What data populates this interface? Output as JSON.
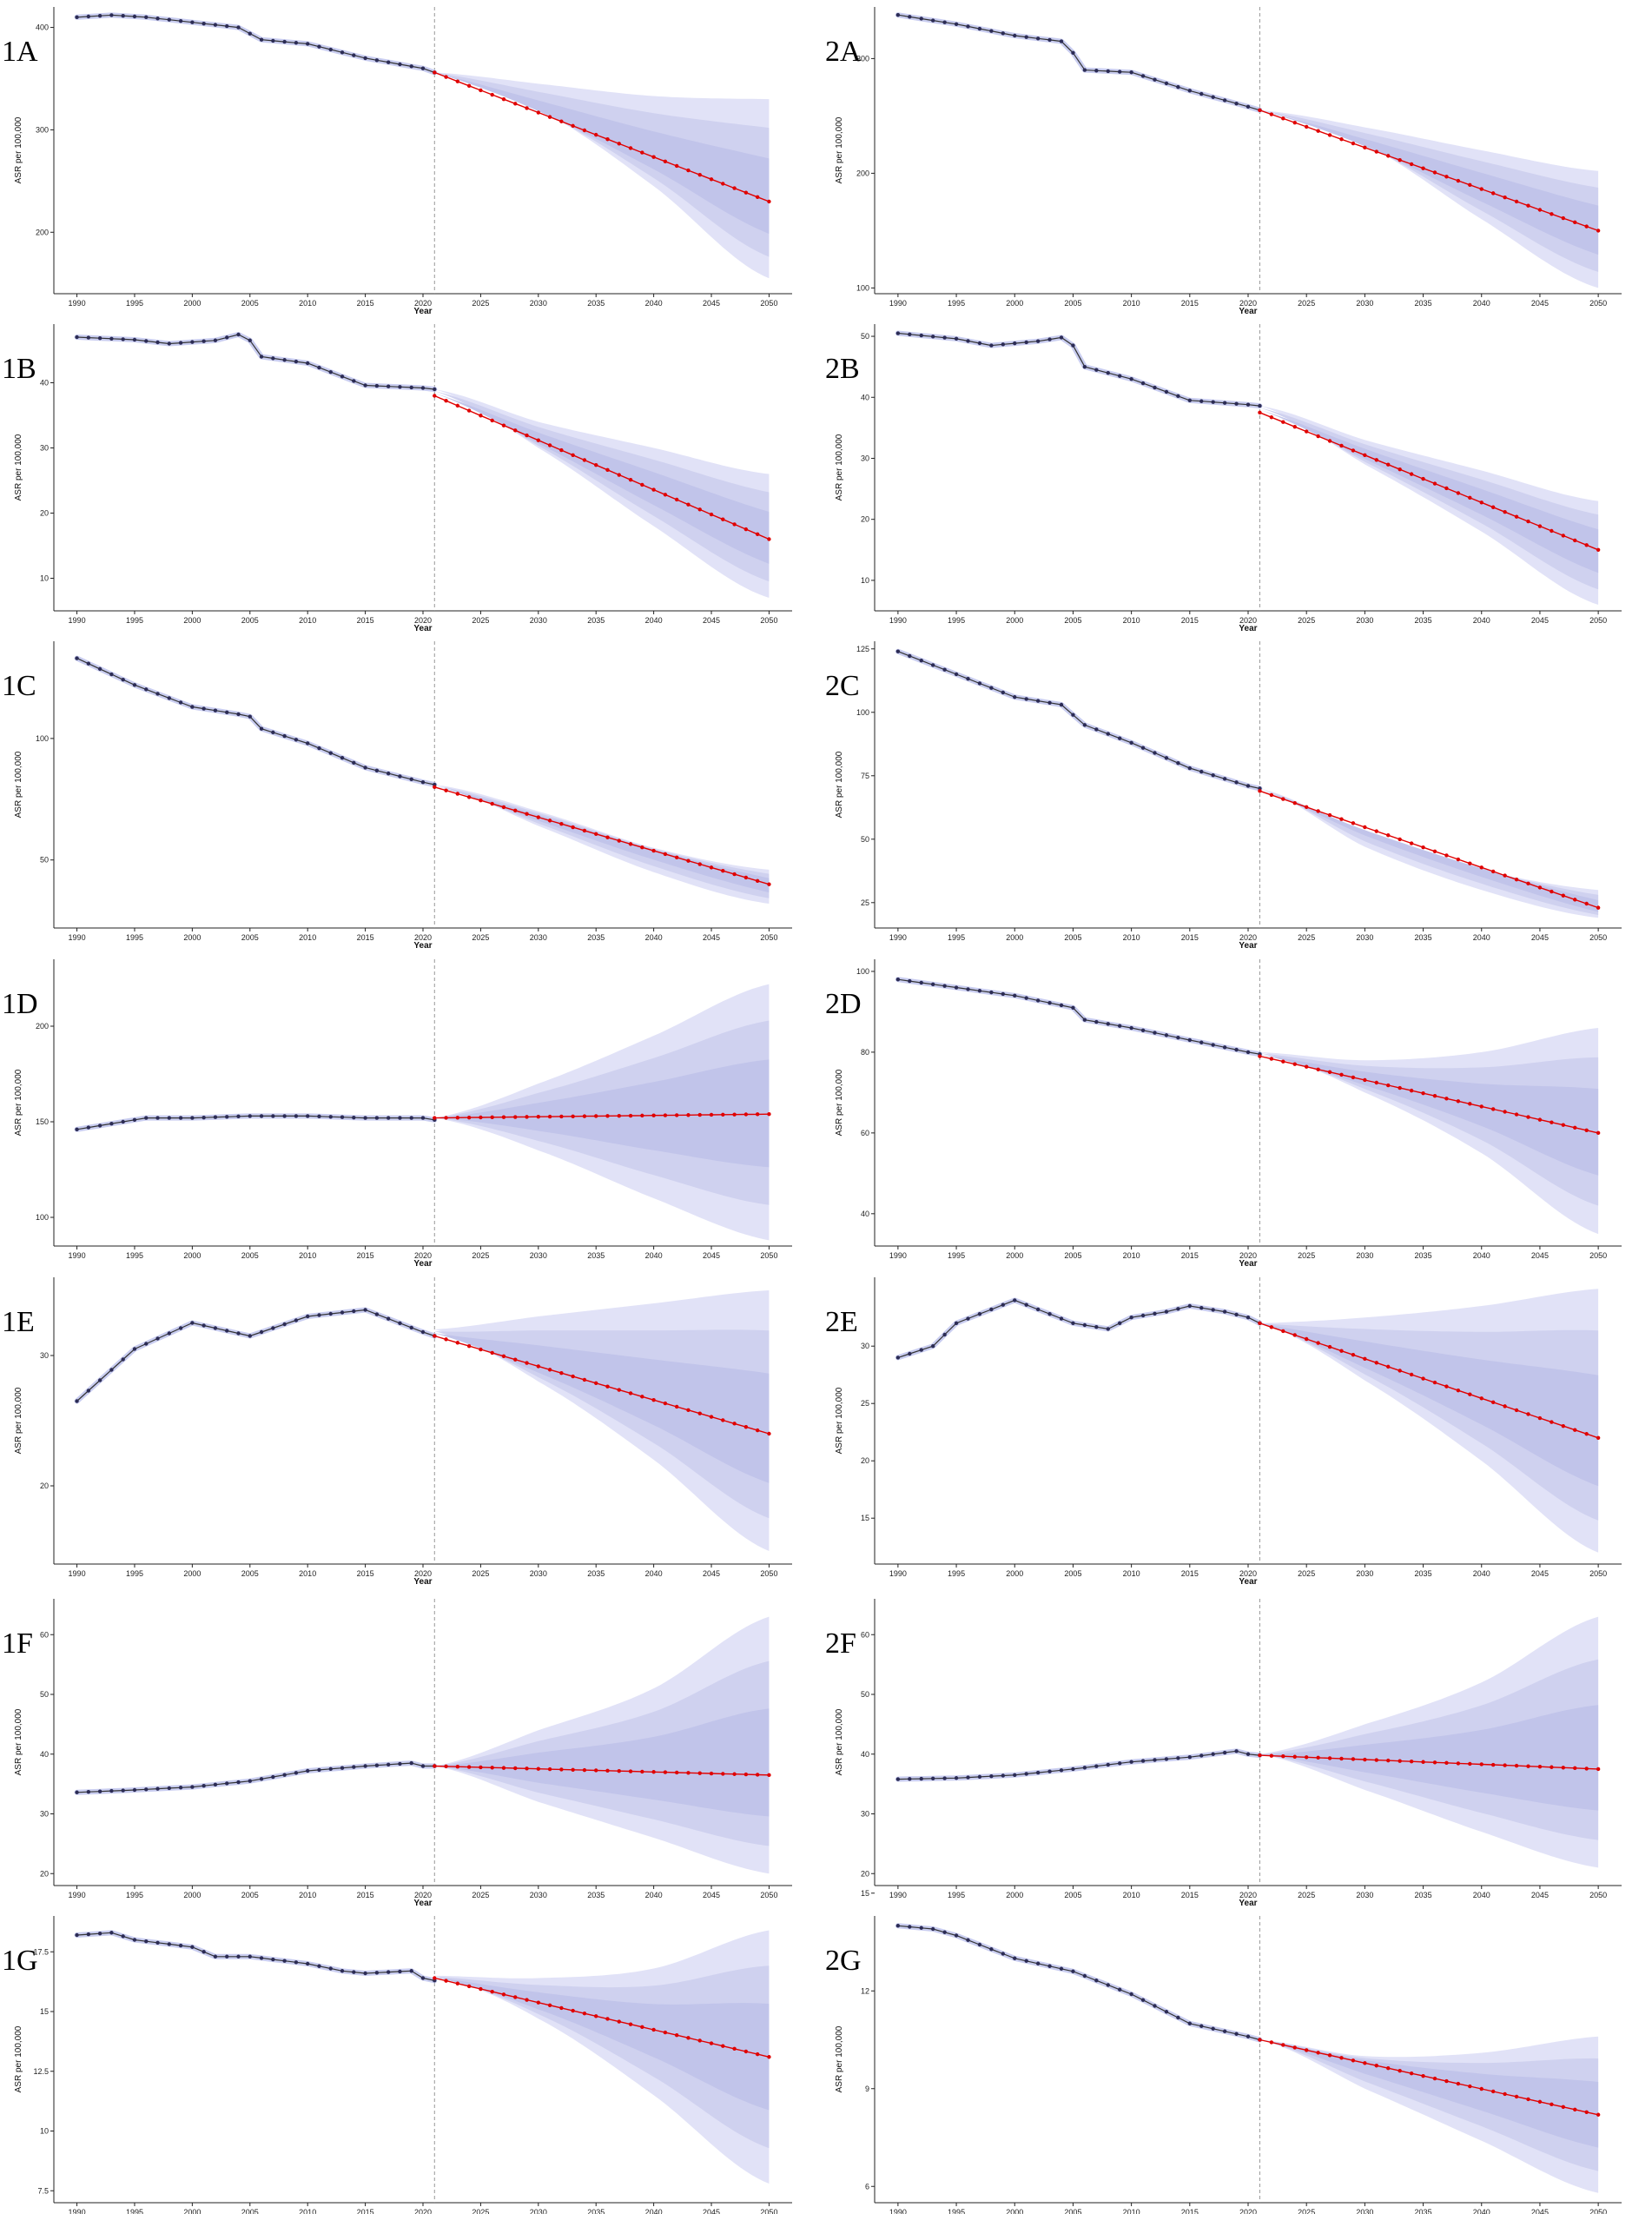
{
  "figure": {
    "colors": {
      "observed_line": "#333333",
      "observed_point": "#2c2c55",
      "observed_band": "#c9cdf0",
      "projection_line": "#e00000",
      "projection_point": "#e00000",
      "ci_band_outer": "#e1e2f7",
      "ci_band_inner": "#cfd1ef",
      "ci_band_core": "#c1c4ea",
      "divider_line": "#999999",
      "axis": "#222222"
    },
    "x_label": "Year",
    "y_label": "ASR per 100,000",
    "x_ticks": [
      1990,
      1995,
      2000,
      2005,
      2010,
      2015,
      2020,
      2025,
      2030,
      2035,
      2040,
      2045,
      2050
    ],
    "divider_year": 2021
  },
  "chart_data": [
    {
      "id": "1A",
      "label": "1A",
      "type": "line",
      "ylim": [
        140,
        420
      ],
      "yticks": [
        200,
        300,
        400
      ],
      "observed": {
        "x": [
          1990,
          1993,
          1996,
          2000,
          2004,
          2006,
          2010,
          2015,
          2020,
          2021
        ],
        "y": [
          410,
          412,
          410,
          405,
          400,
          388,
          384,
          370,
          360,
          356
        ]
      },
      "projection": {
        "x": [
          2021,
          2050
        ],
        "y": [
          356,
          230
        ]
      },
      "ci_upper": [
        [
          2021,
          356
        ],
        [
          2030,
          345
        ],
        [
          2040,
          333
        ],
        [
          2050,
          330
        ]
      ],
      "ci_lower": [
        [
          2021,
          356
        ],
        [
          2030,
          320
        ],
        [
          2040,
          245
        ],
        [
          2050,
          155
        ]
      ]
    },
    {
      "id": "2A",
      "label": "2A",
      "type": "line",
      "ylim": [
        95,
        345
      ],
      "yticks": [
        100,
        200,
        300
      ],
      "observed": {
        "x": [
          1990,
          1995,
          2000,
          2004,
          2005,
          2006,
          2010,
          2015,
          2020,
          2021
        ],
        "y": [
          338,
          330,
          320,
          315,
          305,
          290,
          288,
          272,
          258,
          255
        ]
      },
      "projection": {
        "x": [
          2021,
          2050
        ],
        "y": [
          255,
          150
        ]
      },
      "ci_upper": [
        [
          2021,
          255
        ],
        [
          2030,
          240
        ],
        [
          2040,
          220
        ],
        [
          2050,
          202
        ]
      ],
      "ci_lower": [
        [
          2021,
          255
        ],
        [
          2030,
          225
        ],
        [
          2040,
          160
        ],
        [
          2050,
          100
        ]
      ]
    },
    {
      "id": "1B",
      "label": "1B",
      "type": "line",
      "ylim": [
        5,
        49
      ],
      "yticks": [
        10,
        20,
        30,
        40
      ],
      "observed": {
        "x": [
          1990,
          1995,
          1998,
          2002,
          2004,
          2005,
          2006,
          2010,
          2015,
          2020,
          2021
        ],
        "y": [
          47,
          46.6,
          46,
          46.5,
          47.4,
          46.5,
          44,
          43,
          39.6,
          39.2,
          39
        ]
      },
      "projection": {
        "x": [
          2021,
          2050
        ],
        "y": [
          38,
          16
        ]
      },
      "ci_upper": [
        [
          2021,
          39
        ],
        [
          2030,
          34
        ],
        [
          2040,
          30
        ],
        [
          2050,
          26
        ]
      ],
      "ci_lower": [
        [
          2021,
          39
        ],
        [
          2030,
          30
        ],
        [
          2040,
          18
        ],
        [
          2050,
          7
        ]
      ]
    },
    {
      "id": "2B",
      "label": "2B",
      "type": "line",
      "ylim": [
        5,
        52
      ],
      "yticks": [
        10,
        20,
        30,
        40,
        50
      ],
      "observed": {
        "x": [
          1990,
          1995,
          1998,
          2002,
          2004,
          2005,
          2006,
          2010,
          2015,
          2020,
          2021
        ],
        "y": [
          50.5,
          49.6,
          48.5,
          49.2,
          49.8,
          48.5,
          45,
          43,
          39.5,
          38.8,
          38.6
        ]
      },
      "projection": {
        "x": [
          2021,
          2050
        ],
        "y": [
          37.5,
          15
        ]
      },
      "ci_upper": [
        [
          2021,
          38.6
        ],
        [
          2030,
          33
        ],
        [
          2040,
          28
        ],
        [
          2050,
          23
        ]
      ],
      "ci_lower": [
        [
          2021,
          38.6
        ],
        [
          2030,
          29
        ],
        [
          2040,
          18
        ],
        [
          2050,
          6
        ]
      ]
    },
    {
      "id": "1C",
      "label": "1C",
      "type": "line",
      "ylim": [
        22,
        140
      ],
      "yticks": [
        50,
        100
      ],
      "observed": {
        "x": [
          1990,
          1995,
          2000,
          2004,
          2005,
          2006,
          2010,
          2015,
          2020,
          2021
        ],
        "y": [
          133,
          122,
          113,
          110,
          109,
          104,
          98,
          88,
          82,
          81
        ]
      },
      "projection": {
        "x": [
          2021,
          2050
        ],
        "y": [
          80,
          40
        ]
      },
      "ci_upper": [
        [
          2021,
          81
        ],
        [
          2030,
          70
        ],
        [
          2040,
          55
        ],
        [
          2050,
          46
        ]
      ],
      "ci_lower": [
        [
          2021,
          81
        ],
        [
          2030,
          64
        ],
        [
          2040,
          45
        ],
        [
          2050,
          32
        ]
      ]
    },
    {
      "id": "2C",
      "label": "2C",
      "type": "line",
      "ylim": [
        15,
        128
      ],
      "yticks": [
        25,
        50,
        75,
        100,
        125
      ],
      "observed": {
        "x": [
          1990,
          1995,
          2000,
          2004,
          2005,
          2006,
          2010,
          2015,
          2020,
          2021
        ],
        "y": [
          124,
          115,
          106,
          103,
          99,
          95,
          88,
          78,
          71,
          70
        ]
      },
      "projection": {
        "x": [
          2021,
          2050
        ],
        "y": [
          69,
          23
        ]
      },
      "ci_upper": [
        [
          2021,
          70
        ],
        [
          2030,
          52
        ],
        [
          2040,
          38
        ],
        [
          2050,
          30
        ]
      ],
      "ci_lower": [
        [
          2021,
          70
        ],
        [
          2030,
          47
        ],
        [
          2040,
          30
        ],
        [
          2050,
          19
        ]
      ]
    },
    {
      "id": "1D",
      "label": "1D",
      "type": "line",
      "ylim": [
        85,
        235
      ],
      "yticks": [
        100,
        150,
        200
      ],
      "observed": {
        "x": [
          1990,
          1993,
          1996,
          2000,
          2005,
          2010,
          2015,
          2020,
          2021
        ],
        "y": [
          146,
          149,
          152,
          152,
          153,
          153,
          152,
          152,
          151
        ]
      },
      "projection": {
        "x": [
          2021,
          2050
        ],
        "y": [
          152,
          154
        ]
      },
      "ci_upper": [
        [
          2021,
          152
        ],
        [
          2030,
          170
        ],
        [
          2040,
          195
        ],
        [
          2050,
          222
        ]
      ],
      "ci_lower": [
        [
          2021,
          152
        ],
        [
          2030,
          135
        ],
        [
          2040,
          110
        ],
        [
          2050,
          88
        ]
      ]
    },
    {
      "id": "2D",
      "label": "2D",
      "type": "line",
      "ylim": [
        32,
        103
      ],
      "yticks": [
        40,
        60,
        80,
        100
      ],
      "observed": {
        "x": [
          1990,
          1995,
          2000,
          2005,
          2006,
          2010,
          2015,
          2020,
          2021
        ],
        "y": [
          98,
          96,
          94,
          91,
          88,
          86,
          83,
          80,
          79.5
        ]
      },
      "projection": {
        "x": [
          2021,
          2050
        ],
        "y": [
          79,
          60
        ]
      },
      "ci_upper": [
        [
          2021,
          80
        ],
        [
          2030,
          78
        ],
        [
          2040,
          80
        ],
        [
          2050,
          86
        ]
      ],
      "ci_lower": [
        [
          2021,
          80
        ],
        [
          2030,
          70
        ],
        [
          2040,
          55
        ],
        [
          2050,
          35
        ]
      ]
    },
    {
      "id": "1E",
      "label": "1E",
      "type": "line",
      "ylim": [
        14,
        36
      ],
      "yticks": [
        20,
        30
      ],
      "observed": {
        "x": [
          1990,
          1995,
          2000,
          2005,
          2010,
          2015,
          2020,
          2021
        ],
        "y": [
          26.5,
          30.5,
          32.5,
          31.5,
          33,
          33.5,
          31.8,
          31.5
        ]
      },
      "projection": {
        "x": [
          2021,
          2050
        ],
        "y": [
          31.5,
          24
        ]
      },
      "ci_upper": [
        [
          2021,
          32
        ],
        [
          2030,
          33
        ],
        [
          2040,
          34
        ],
        [
          2050,
          35
        ]
      ],
      "ci_lower": [
        [
          2021,
          32
        ],
        [
          2030,
          28
        ],
        [
          2040,
          22
        ],
        [
          2050,
          15
        ]
      ]
    },
    {
      "id": "2E",
      "label": "2E",
      "type": "line",
      "ylim": [
        11,
        36
      ],
      "yticks": [
        15,
        20,
        25,
        30
      ],
      "observed": {
        "x": [
          1990,
          1993,
          1995,
          2000,
          2005,
          2008,
          2010,
          2013,
          2015,
          2018,
          2020,
          2021
        ],
        "y": [
          29,
          30,
          32,
          34,
          32,
          31.5,
          32.5,
          33,
          33.5,
          33,
          32.5,
          32
        ]
      },
      "projection": {
        "x": [
          2021,
          2050
        ],
        "y": [
          32,
          22
        ]
      },
      "ci_upper": [
        [
          2021,
          32
        ],
        [
          2030,
          32.5
        ],
        [
          2040,
          33.5
        ],
        [
          2050,
          35
        ]
      ],
      "ci_lower": [
        [
          2021,
          32
        ],
        [
          2030,
          27
        ],
        [
          2040,
          20
        ],
        [
          2050,
          12
        ]
      ]
    },
    {
      "id": "1F",
      "label": "1F",
      "type": "line",
      "ylim": [
        18,
        66
      ],
      "yticks": [
        20,
        30,
        40,
        50,
        60
      ],
      "observed": {
        "x": [
          1990,
          1995,
          2000,
          2005,
          2010,
          2015,
          2019,
          2020,
          2021
        ],
        "y": [
          33.6,
          34,
          34.5,
          35.5,
          37.2,
          38,
          38.5,
          38,
          38
        ]
      },
      "projection": {
        "x": [
          2021,
          2050
        ],
        "y": [
          38,
          36.5
        ]
      },
      "ci_upper": [
        [
          2021,
          38
        ],
        [
          2030,
          44
        ],
        [
          2040,
          51
        ],
        [
          2050,
          63
        ]
      ],
      "ci_lower": [
        [
          2021,
          38
        ],
        [
          2030,
          32
        ],
        [
          2040,
          26
        ],
        [
          2050,
          20
        ]
      ]
    },
    {
      "id": "2F",
      "label": "2F",
      "type": "line",
      "ylim": [
        18,
        66
      ],
      "yticks": [
        20,
        30,
        40,
        50,
        60
      ],
      "observed": {
        "x": [
          1990,
          1995,
          2000,
          2005,
          2010,
          2015,
          2019,
          2020,
          2021
        ],
        "y": [
          35.8,
          36,
          36.5,
          37.5,
          38.7,
          39.5,
          40.5,
          40,
          39.8
        ]
      },
      "projection": {
        "x": [
          2021,
          2050
        ],
        "y": [
          39.8,
          37.5
        ]
      },
      "ci_upper": [
        [
          2021,
          40
        ],
        [
          2030,
          45
        ],
        [
          2040,
          52
        ],
        [
          2050,
          63
        ]
      ],
      "ci_lower": [
        [
          2021,
          40
        ],
        [
          2030,
          34
        ],
        [
          2040,
          27
        ],
        [
          2050,
          21
        ]
      ]
    },
    {
      "id": "1G",
      "label": "1G",
      "type": "line",
      "ylim": [
        7,
        19
      ],
      "yticks": [
        7.5,
        10.0,
        12.5,
        15.0,
        17.5
      ],
      "observed": {
        "x": [
          1990,
          1993,
          1995,
          2000,
          2002,
          2005,
          2010,
          2013,
          2015,
          2019,
          2020,
          2021
        ],
        "y": [
          18.2,
          18.3,
          18.0,
          17.7,
          17.3,
          17.3,
          17.0,
          16.7,
          16.6,
          16.7,
          16.4,
          16.3
        ]
      },
      "projection": {
        "x": [
          2021,
          2050
        ],
        "y": [
          16.4,
          13.1
        ]
      },
      "ci_upper": [
        [
          2021,
          16.5
        ],
        [
          2030,
          16.4
        ],
        [
          2040,
          16.8
        ],
        [
          2050,
          18.4
        ]
      ],
      "ci_lower": [
        [
          2021,
          16.5
        ],
        [
          2030,
          14.7
        ],
        [
          2040,
          11.5
        ],
        [
          2050,
          7.8
        ]
      ]
    },
    {
      "id": "2G",
      "label": "2G",
      "type": "line",
      "ylim": [
        5.5,
        14.3
      ],
      "yticks": [
        6,
        9,
        12,
        15
      ],
      "observed": {
        "x": [
          1990,
          1993,
          1995,
          2000,
          2005,
          2010,
          2015,
          2020,
          2021
        ],
        "y": [
          14.0,
          13.9,
          13.7,
          13.0,
          12.6,
          11.9,
          11.0,
          10.6,
          10.5
        ]
      },
      "projection": {
        "x": [
          2021,
          2050
        ],
        "y": [
          10.5,
          8.2
        ]
      },
      "ci_upper": [
        [
          2021,
          10.5
        ],
        [
          2030,
          10.0
        ],
        [
          2040,
          10.1
        ],
        [
          2050,
          10.6
        ]
      ],
      "ci_lower": [
        [
          2021,
          10.5
        ],
        [
          2030,
          9.0
        ],
        [
          2040,
          7.4
        ],
        [
          2050,
          5.8
        ]
      ]
    }
  ]
}
